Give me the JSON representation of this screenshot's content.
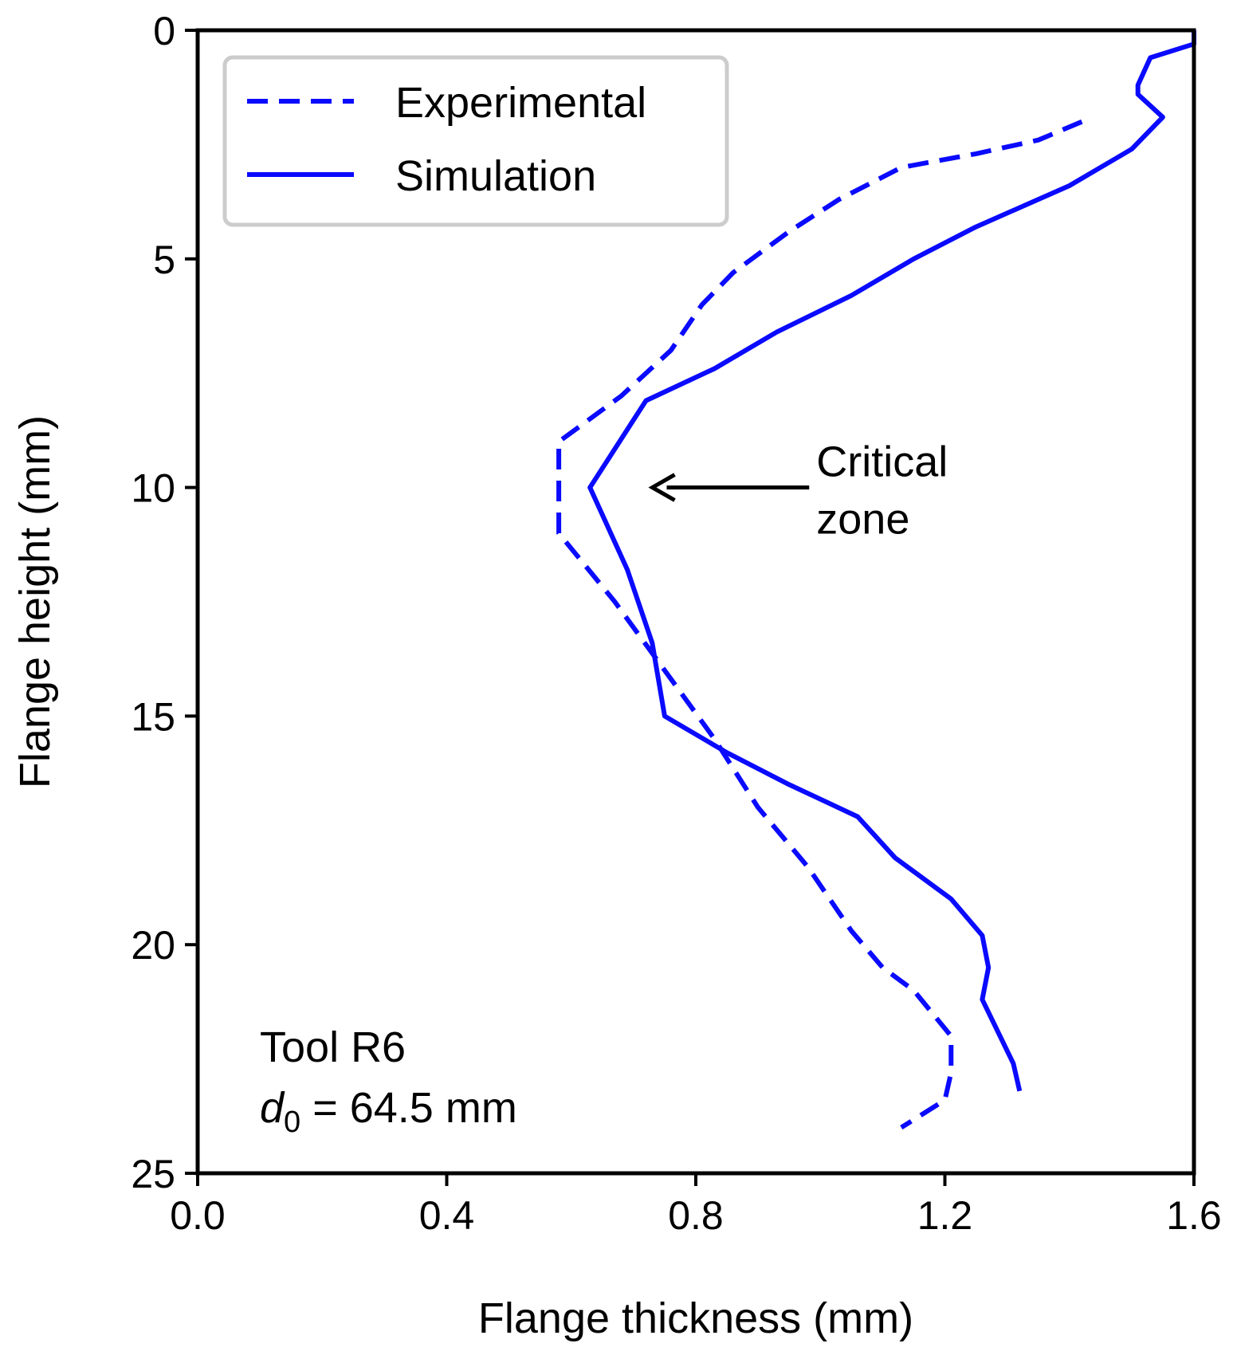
{
  "chart_data": {
    "type": "line",
    "title": "",
    "xlabel": "Flange thickness (mm)",
    "ylabel": "Flange height (mm)",
    "xlim": [
      0.0,
      1.6
    ],
    "ylim": [
      25,
      0
    ],
    "y_inverted": true,
    "grid": false,
    "xticks": [
      0.0,
      0.4,
      0.8,
      1.2,
      1.6
    ],
    "xtick_labels": [
      "0.0",
      "0.4",
      "0.8",
      "1.2",
      "1.6"
    ],
    "yticks": [
      0,
      5,
      10,
      15,
      20,
      25
    ],
    "ytick_labels": [
      "0",
      "5",
      "10",
      "15",
      "20",
      "25"
    ],
    "legend": {
      "position": "top-left",
      "entries": [
        {
          "label": "Experimental",
          "style": "dashed"
        },
        {
          "label": "Simulation",
          "style": "solid"
        }
      ]
    },
    "series": [
      {
        "name": "Experimental",
        "style": "dashed",
        "color": "#0a0aff",
        "x": [
          1.42,
          1.35,
          1.25,
          1.13,
          1.03,
          0.95,
          0.86,
          0.81,
          0.76,
          0.68,
          0.58,
          0.58,
          0.58,
          0.67,
          0.75,
          0.83,
          0.9,
          0.98,
          1.05,
          1.1,
          1.15,
          1.21,
          1.21,
          1.2,
          1.13
        ],
        "y": [
          2.0,
          2.4,
          2.7,
          3.0,
          3.7,
          4.4,
          5.3,
          6.0,
          7.0,
          8.0,
          9.0,
          10.0,
          11.0,
          12.5,
          14.0,
          15.5,
          17.0,
          18.3,
          19.7,
          20.5,
          21.0,
          22.0,
          22.8,
          23.4,
          24.0
        ]
      },
      {
        "name": "Simulation",
        "style": "solid",
        "color": "#0a0aff",
        "x": [
          1.6,
          1.6,
          1.53,
          1.51,
          1.51,
          1.55,
          1.5,
          1.4,
          1.25,
          1.15,
          1.05,
          0.93,
          0.83,
          0.72,
          0.63,
          0.69,
          0.73,
          0.75,
          0.85,
          0.95,
          1.06,
          1.12,
          1.21,
          1.26,
          1.27,
          1.26,
          1.31,
          1.32
        ],
        "y": [
          0.0,
          0.3,
          0.6,
          1.2,
          1.4,
          1.9,
          2.6,
          3.4,
          4.3,
          5.0,
          5.8,
          6.6,
          7.4,
          8.1,
          10.0,
          11.8,
          13.4,
          15.0,
          15.8,
          16.5,
          17.2,
          18.1,
          19.0,
          19.8,
          20.5,
          21.2,
          22.6,
          23.2
        ]
      }
    ],
    "annotations": [
      {
        "text_lines": [
          "Critical",
          "zone"
        ],
        "arrow_to": {
          "x": 0.72,
          "y": 10.0
        },
        "text_at": {
          "x": 1.0,
          "y": 10.0
        }
      }
    ],
    "inset_text": {
      "line1": "Tool R6",
      "line2_var": "d",
      "line2_sub": "0",
      "line2_rest": " = 64.5 mm"
    }
  }
}
